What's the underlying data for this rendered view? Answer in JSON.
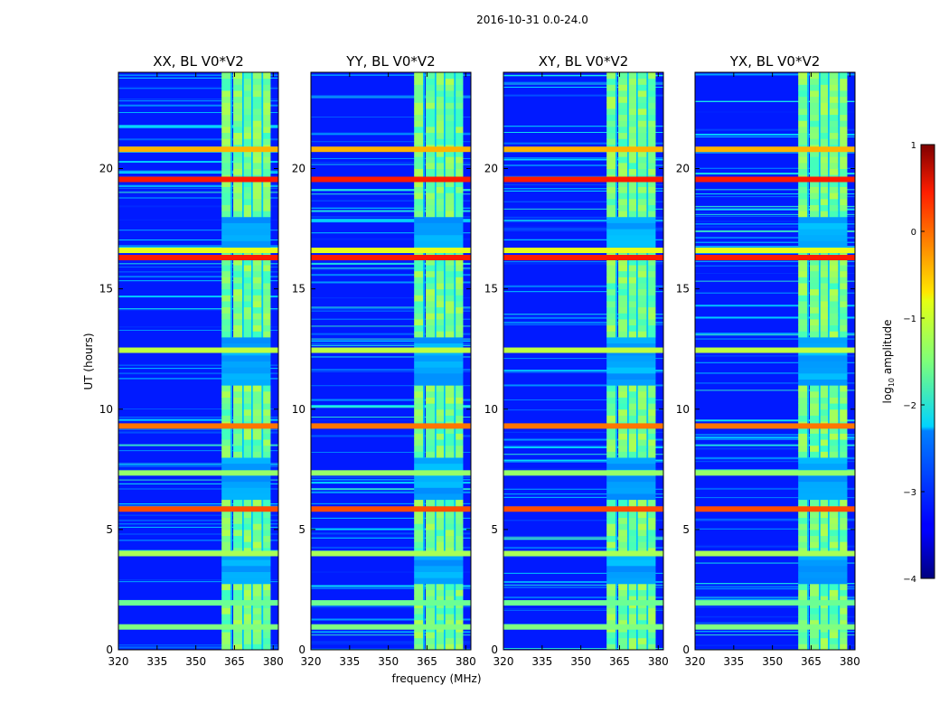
{
  "chart_data": {
    "type": "heatmap",
    "suptitle": "2016-10-31 0.0-24.0",
    "panels": [
      {
        "title": "XX, BL V0*V2"
      },
      {
        "title": "YY, BL V0*V2"
      },
      {
        "title": "XY, BL V0*V2"
      },
      {
        "title": "YX, BL V0*V2"
      }
    ],
    "xlabel": "frequency (MHz)",
    "ylabel": "UT (hours)",
    "xlim": [
      320,
      382
    ],
    "ylim": [
      0,
      24
    ],
    "xticks": [
      320,
      335,
      350,
      365,
      380
    ],
    "yticks": [
      0,
      5,
      10,
      15,
      20
    ],
    "colorbar": {
      "label": "log₁₀ amplitude",
      "label_base": "log",
      "label_sub": "10",
      "label_rest": " amplitude",
      "range": [
        -4,
        1
      ],
      "ticks": [
        1,
        0,
        -1,
        -2,
        -3,
        -4
      ],
      "tick_labels": [
        "1",
        "0",
        "−1",
        "−2",
        "−3",
        "−4"
      ],
      "colormap": "jet"
    },
    "active_band_mhz": [
      360,
      379
    ],
    "active_band_hours": [
      [
        0,
        2.5
      ],
      [
        3.8,
        6
      ],
      [
        8,
        10.8
      ],
      [
        12.8,
        16.3
      ],
      [
        17.8,
        24
      ]
    ],
    "rfi_hours": [
      {
        "t": 19.55,
        "v": 0.25
      },
      {
        "t": 16.3,
        "v": 0.25
      },
      {
        "t": 16.6,
        "v": -1.0
      },
      {
        "t": 9.3,
        "v": -0.2
      },
      {
        "t": 5.85,
        "v": 0.0
      },
      {
        "t": 7.35,
        "v": -1.4
      },
      {
        "t": 12.45,
        "v": -1.2
      },
      {
        "t": 0.95,
        "v": -1.5
      },
      {
        "t": 1.95,
        "v": -1.6
      },
      {
        "t": 4.0,
        "v": -1.3
      },
      {
        "t": 20.8,
        "v": -0.5
      }
    ],
    "colors": {
      "background": "#ffffff",
      "axes": "#000000"
    }
  }
}
